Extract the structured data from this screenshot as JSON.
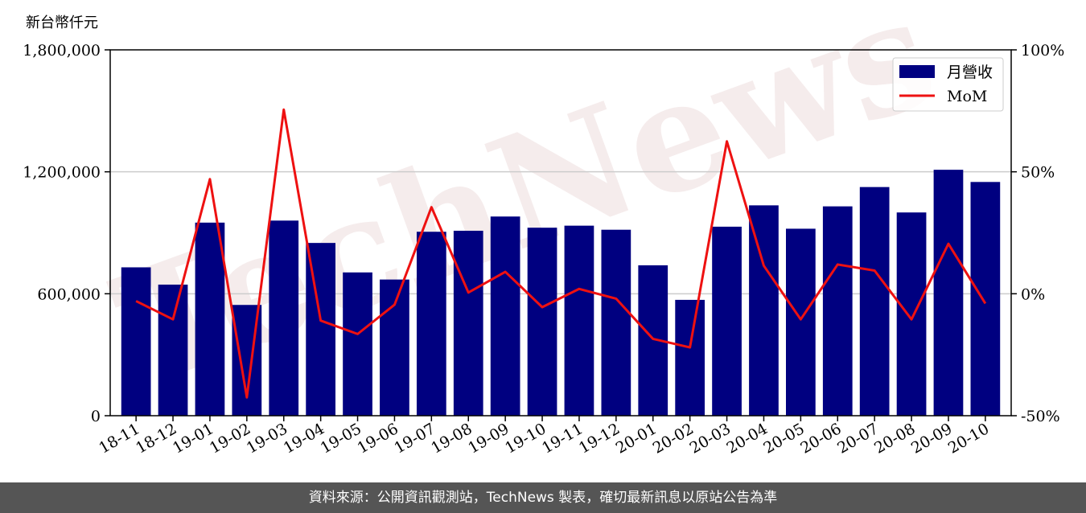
{
  "unit_label": "新台幣仟元",
  "watermark": "TechNews",
  "footer_text": "資料來源：公開資訊觀測站，TechNews 製表，確切最新訊息以原站公告為準",
  "colors": {
    "bar": "#000080",
    "line": "#ee1111",
    "footer_bg": "#555555"
  },
  "chart_data": {
    "type": "bar",
    "categories": [
      "18-11",
      "18-12",
      "19-01",
      "19-02",
      "19-03",
      "19-04",
      "19-05",
      "19-06",
      "19-07",
      "19-08",
      "19-09",
      "19-10",
      "19-11",
      "19-12",
      "20-01",
      "20-02",
      "20-03",
      "20-04",
      "20-05",
      "20-06",
      "20-07",
      "20-08",
      "20-09",
      "20-10"
    ],
    "series": [
      {
        "name": "月營收",
        "type": "bar",
        "axis": "left",
        "values": [
          730000,
          645000,
          950000,
          545000,
          960000,
          850000,
          705000,
          670000,
          905000,
          910000,
          980000,
          925000,
          935000,
          915000,
          740000,
          570000,
          930000,
          1035000,
          920000,
          1030000,
          1125000,
          1000000,
          1210000,
          1150000
        ]
      },
      {
        "name": "MoM",
        "type": "line",
        "axis": "right",
        "values": [
          -3,
          -10.5,
          47,
          -42.5,
          75.5,
          -11,
          -16.5,
          -4.5,
          35.5,
          0.5,
          9,
          -5.5,
          2,
          -2,
          -18.5,
          -22,
          62.5,
          11.5,
          -10.5,
          12,
          9.5,
          -10.5,
          20.5,
          -4
        ]
      }
    ],
    "y_left": {
      "min": 0,
      "max": 1800000,
      "ticks": [
        0,
        600000,
        1200000,
        1800000
      ],
      "tick_labels": [
        "0",
        "600,000",
        "1,200,000",
        "1,800,000"
      ]
    },
    "y_right": {
      "min": -50,
      "max": 100,
      "ticks": [
        -50,
        0,
        50,
        100
      ],
      "tick_labels": [
        "-50%",
        "0%",
        "50%",
        "100%"
      ]
    },
    "grid": "horizontal",
    "legend": "top-right"
  }
}
